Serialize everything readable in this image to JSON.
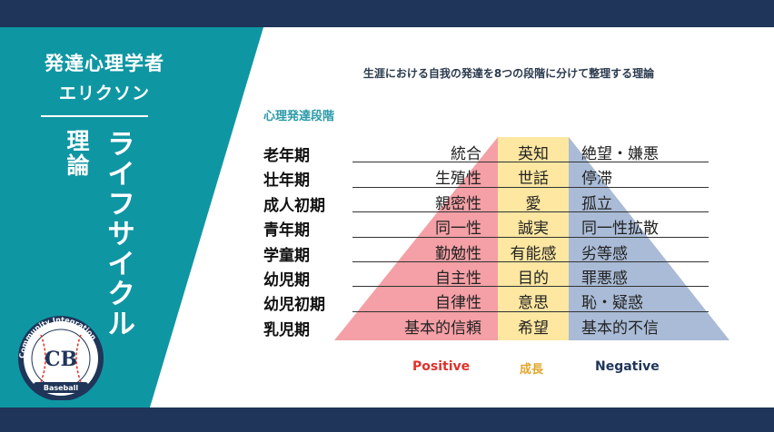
{
  "side": {
    "title": "発達心理学者",
    "name": "エリクソン",
    "vertical_small": "理論",
    "vertical_large": "ライフサイクル",
    "logo_ring_text": "Community Integration",
    "logo_initials": "CB",
    "logo_banner": "Baseball"
  },
  "main": {
    "subtitle": "生涯における自我の発達を8つの段階に分けて整理する理論",
    "section_label": "心理発達段階",
    "stages": [
      {
        "stage": "老年期",
        "positive": "統合",
        "virtue": "英知",
        "negative": "絶望・嫌悪"
      },
      {
        "stage": "壮年期",
        "positive": "生殖性",
        "virtue": "世話",
        "negative": "停滞"
      },
      {
        "stage": "成人初期",
        "positive": "親密性",
        "virtue": "愛",
        "negative": "孤立"
      },
      {
        "stage": "青年期",
        "positive": "同一性",
        "virtue": "誠実",
        "negative": "同一性拡散"
      },
      {
        "stage": "学童期",
        "positive": "勤勉性",
        "virtue": "有能感",
        "negative": "劣等感"
      },
      {
        "stage": "幼児期",
        "positive": "自主性",
        "virtue": "目的",
        "negative": "罪悪感"
      },
      {
        "stage": "幼児初期",
        "positive": "自律性",
        "virtue": "意思",
        "negative": "恥・疑惑"
      },
      {
        "stage": "乳児期",
        "positive": "基本的信頼",
        "virtue": "希望",
        "negative": "基本的不信"
      }
    ],
    "legend": {
      "positive": "Positive",
      "virtue": "成長",
      "negative": "Negative"
    }
  },
  "colors": {
    "navy": "#1f3559",
    "teal": "#0f96a3",
    "pink": "#f4a0a6",
    "yellow": "#fde7a1",
    "blue": "#a9bbd6"
  }
}
